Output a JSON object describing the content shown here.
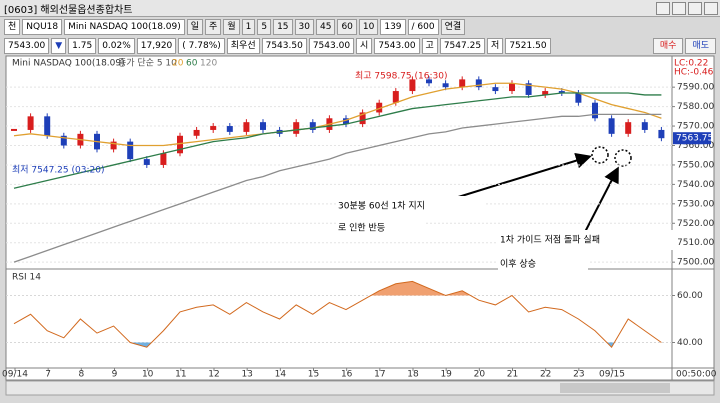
{
  "window": {
    "title": "[0603] 해외선물옵션종합차트"
  },
  "toolbar": {
    "items": [
      "천",
      "NQU18",
      "Mini NASDAQ 100(18.09)",
      "일",
      "주",
      "월",
      "1",
      "5",
      "15",
      "30",
      "45",
      "60",
      "10",
      "139",
      "/ 600",
      "연결"
    ]
  },
  "quote": {
    "items": [
      "7543.00",
      "▼",
      "1.75",
      "0.02%",
      "17,920",
      "( 7.78%)",
      "최우선",
      "7543.50",
      "7543.00",
      "시",
      "7543.00",
      "고",
      "7547.25",
      "저",
      "7521.50"
    ],
    "buttons": [
      "매수",
      "매도"
    ]
  },
  "time_axis": {
    "labels": [
      "09/14",
      "7",
      "8",
      "9",
      "10",
      "11",
      "12",
      "13",
      "14",
      "15",
      "16",
      "17",
      "18",
      "19",
      "20",
      "21",
      "22",
      "23",
      "09/15"
    ],
    "time": "00:50:00"
  },
  "chart_data": [
    {
      "type": "candlestick",
      "title": "Mini NASDAQ 100(18.09)",
      "subtitle": "종가 단순 5 10",
      "close": [
        7568,
        7575,
        7565,
        7560,
        7566,
        7558,
        7562,
        7553,
        7550,
        7556,
        7565,
        7568,
        7570,
        7567,
        7572,
        7568,
        7566,
        7572,
        7568,
        7574,
        7571,
        7577,
        7582,
        7588,
        7594,
        7592,
        7590,
        7594,
        7590,
        7588,
        7592,
        7586,
        7588,
        7587,
        7582,
        7574,
        7566,
        7572,
        7568,
        7563.75
      ],
      "last_label": "7563.75",
      "up_color": "#d81e1e",
      "down_color": "#1e3fb8",
      "series": [
        {
          "name": "20",
          "color": "#e0a030",
          "values": [
            7565,
            7566,
            7565,
            7564,
            7563,
            7562,
            7561,
            7560,
            7560,
            7560,
            7561,
            7562,
            7563,
            7564,
            7565,
            7566,
            7567,
            7568,
            7569,
            7571,
            7573,
            7576,
            7579,
            7582,
            7585,
            7587,
            7589,
            7590,
            7591,
            7592,
            7592,
            7591,
            7590,
            7589,
            7587,
            7584,
            7581,
            7579,
            7577,
            7574
          ]
        },
        {
          "name": "60",
          "color": "#2e7d4a",
          "values": [
            7538,
            7540,
            7542,
            7544,
            7546,
            7548,
            7550,
            7552,
            7554,
            7556,
            7558,
            7560,
            7562,
            7563,
            7564,
            7566,
            7567,
            7568,
            7569,
            7570,
            7571,
            7573,
            7575,
            7577,
            7579,
            7580,
            7581,
            7582,
            7583,
            7584,
            7585,
            7585,
            7586,
            7587,
            7587,
            7587,
            7587,
            7587,
            7586,
            7586
          ]
        },
        {
          "name": "120",
          "color": "#8c8c8c",
          "values": [
            7500,
            7503,
            7506,
            7509,
            7512,
            7515,
            7518,
            7521,
            7524,
            7527,
            7530,
            7533,
            7536,
            7539,
            7542,
            7544,
            7547,
            7549,
            7551,
            7553,
            7556,
            7558,
            7560,
            7562,
            7564,
            7566,
            7567,
            7569,
            7570,
            7571,
            7572,
            7573,
            7574,
            7575,
            7575,
            7576,
            7576,
            7576,
            7576,
            7576
          ]
        }
      ],
      "ylim": [
        7497,
        7605
      ],
      "yticks": [
        {
          "value": 7590,
          "label": "7590.00"
        },
        {
          "value": 7580,
          "label": "7580.00"
        },
        {
          "value": 7570,
          "label": "7570.00"
        },
        {
          "value": 7560,
          "label": "7560.00"
        },
        {
          "value": 7550,
          "label": "7550.00"
        },
        {
          "value": 7540,
          "label": "7540.00"
        },
        {
          "value": 7530,
          "label": "7530.00"
        },
        {
          "value": 7520,
          "label": "7520.00"
        },
        {
          "value": 7510,
          "label": "7510.00"
        },
        {
          "value": 7500,
          "label": "7500.00"
        }
      ],
      "grid": true,
      "side_labels": [
        "LC:0.22",
        "HC:-0.46"
      ],
      "annotations": [
        "최고 7598.75 (16:30)",
        "최저 7547.25 (03:20)",
        "30분봉 60선 1차 지지",
        "로 인한 반등",
        "1차 가이드 저점 돌파 실패",
        "이후 상승"
      ]
    },
    {
      "type": "line",
      "title": "RSI 14",
      "color": "#d2691e",
      "values": [
        48,
        52,
        45,
        42,
        50,
        44,
        47,
        40,
        38,
        45,
        53,
        55,
        56,
        52,
        57,
        53,
        50,
        56,
        52,
        57,
        54,
        58,
        62,
        65,
        66,
        63,
        60,
        62,
        58,
        56,
        60,
        53,
        55,
        54,
        50,
        45,
        38,
        50,
        45,
        40
      ],
      "ylim": [
        30,
        70
      ],
      "yticks": [
        {
          "value": 60,
          "label": "60.00"
        },
        {
          "value": 40,
          "label": "40.00"
        }
      ],
      "grid": true
    }
  ]
}
